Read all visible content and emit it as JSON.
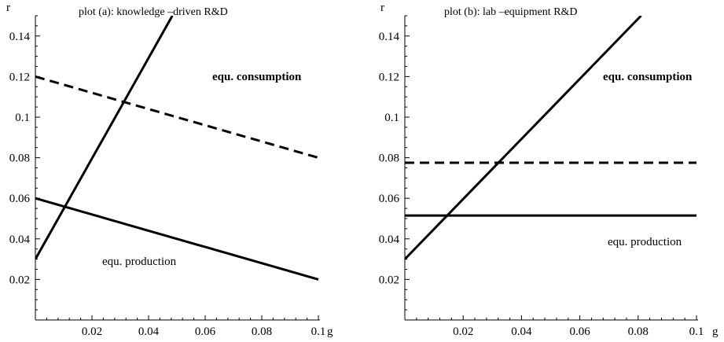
{
  "chart_data": [
    {
      "type": "line",
      "title": "plot (a): knowledge –driven  R&D",
      "xlabel": "g",
      "ylabel": "r",
      "xlim": [
        0,
        0.1
      ],
      "ylim": [
        0,
        0.15
      ],
      "xticks": [
        "0.02",
        "0.04",
        "0.06",
        "0.08",
        "0.1"
      ],
      "yticks": [
        "0.02",
        "0.04",
        "0.06",
        "0.08",
        "0.1",
        "0.12",
        "0.14"
      ],
      "grid": false,
      "series": [
        {
          "style": "solid",
          "x": [
            0,
            0.0484
          ],
          "y": [
            0.03,
            0.15
          ]
        },
        {
          "style": "dashed",
          "x": [
            0,
            0.1
          ],
          "y": [
            0.12,
            0.08
          ]
        },
        {
          "style": "solid",
          "x": [
            0,
            0.1
          ],
          "y": [
            0.06,
            0.02
          ]
        }
      ],
      "annotations": [
        {
          "text": "equ. consumption",
          "bold": true
        },
        {
          "text": "equ. production",
          "bold": false
        }
      ]
    },
    {
      "type": "line",
      "title": "plot (b): lab –equipment   R&D",
      "xlabel": "g",
      "ylabel": "r",
      "xlim": [
        0,
        0.1
      ],
      "ylim": [
        0,
        0.15
      ],
      "xticks": [
        "0.02",
        "0.04",
        "0.06",
        "0.08",
        "0.1"
      ],
      "yticks": [
        "0.02",
        "0.04",
        "0.06",
        "0.08",
        "0.1",
        "0.12",
        "0.14"
      ],
      "grid": false,
      "series": [
        {
          "style": "solid",
          "x": [
            0,
            0.081
          ],
          "y": [
            0.03,
            0.15
          ]
        },
        {
          "style": "dashed",
          "x": [
            0,
            0.1
          ],
          "y": [
            0.0775,
            0.0775
          ]
        },
        {
          "style": "solid",
          "x": [
            0,
            0.1
          ],
          "y": [
            0.0515,
            0.0515
          ]
        }
      ],
      "annotations": [
        {
          "text": "equ. consumption",
          "bold": true
        },
        {
          "text": "equ. production",
          "bold": false
        }
      ]
    }
  ]
}
